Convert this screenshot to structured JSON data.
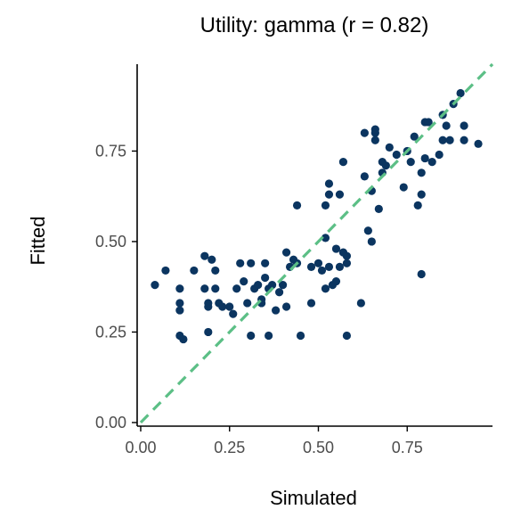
{
  "chart_data": {
    "type": "scatter",
    "title": "Utility: gamma (r = 0.82)",
    "xlabel": "Simulated",
    "ylabel": "Fitted",
    "xlim": [
      -0.01,
      0.99
    ],
    "ylim": [
      -0.01,
      0.99
    ],
    "x_ticks": [
      0,
      0.25,
      0.5,
      0.75
    ],
    "x_tick_labels": [
      "0.00",
      "0.25",
      "0.50",
      "0.75"
    ],
    "y_ticks": [
      0,
      0.25,
      0.5,
      0.75
    ],
    "y_tick_labels": [
      "0.00",
      "0.25",
      "0.50",
      "0.75"
    ],
    "grid": false,
    "point_color": "#0b3560",
    "reference_line": {
      "slope": 1,
      "intercept": 0,
      "style": "dashed",
      "color": "#5cbf86",
      "from": 0,
      "to": 1
    },
    "points": [
      [
        0.04,
        0.38
      ],
      [
        0.07,
        0.42
      ],
      [
        0.11,
        0.37
      ],
      [
        0.11,
        0.33
      ],
      [
        0.11,
        0.31
      ],
      [
        0.11,
        0.24
      ],
      [
        0.12,
        0.23
      ],
      [
        0.15,
        0.42
      ],
      [
        0.18,
        0.46
      ],
      [
        0.18,
        0.37
      ],
      [
        0.19,
        0.32
      ],
      [
        0.19,
        0.25
      ],
      [
        0.19,
        0.33
      ],
      [
        0.2,
        0.45
      ],
      [
        0.21,
        0.37
      ],
      [
        0.21,
        0.42
      ],
      [
        0.22,
        0.33
      ],
      [
        0.23,
        0.32
      ],
      [
        0.25,
        0.32
      ],
      [
        0.26,
        0.3
      ],
      [
        0.27,
        0.37
      ],
      [
        0.28,
        0.44
      ],
      [
        0.29,
        0.39
      ],
      [
        0.3,
        0.33
      ],
      [
        0.31,
        0.44
      ],
      [
        0.31,
        0.24
      ],
      [
        0.32,
        0.37
      ],
      [
        0.33,
        0.38
      ],
      [
        0.34,
        0.34
      ],
      [
        0.34,
        0.33
      ],
      [
        0.35,
        0.4
      ],
      [
        0.35,
        0.44
      ],
      [
        0.36,
        0.37
      ],
      [
        0.36,
        0.24
      ],
      [
        0.37,
        0.38
      ],
      [
        0.38,
        0.31
      ],
      [
        0.39,
        0.36
      ],
      [
        0.4,
        0.38
      ],
      [
        0.41,
        0.47
      ],
      [
        0.41,
        0.32
      ],
      [
        0.42,
        0.43
      ],
      [
        0.43,
        0.45
      ],
      [
        0.44,
        0.6
      ],
      [
        0.44,
        0.44
      ],
      [
        0.45,
        0.24
      ],
      [
        0.48,
        0.43
      ],
      [
        0.48,
        0.33
      ],
      [
        0.5,
        0.44
      ],
      [
        0.51,
        0.42
      ],
      [
        0.52,
        0.6
      ],
      [
        0.52,
        0.51
      ],
      [
        0.52,
        0.37
      ],
      [
        0.53,
        0.63
      ],
      [
        0.53,
        0.66
      ],
      [
        0.53,
        0.43
      ],
      [
        0.54,
        0.38
      ],
      [
        0.55,
        0.48
      ],
      [
        0.55,
        0.39
      ],
      [
        0.56,
        0.63
      ],
      [
        0.56,
        0.43
      ],
      [
        0.57,
        0.72
      ],
      [
        0.57,
        0.47
      ],
      [
        0.58,
        0.46
      ],
      [
        0.58,
        0.44
      ],
      [
        0.58,
        0.24
      ],
      [
        0.62,
        0.33
      ],
      [
        0.63,
        0.68
      ],
      [
        0.63,
        0.8
      ],
      [
        0.64,
        0.53
      ],
      [
        0.65,
        0.5
      ],
      [
        0.65,
        0.64
      ],
      [
        0.66,
        0.78
      ],
      [
        0.66,
        0.8
      ],
      [
        0.66,
        0.81
      ],
      [
        0.67,
        0.59
      ],
      [
        0.68,
        0.69
      ],
      [
        0.68,
        0.72
      ],
      [
        0.69,
        0.71
      ],
      [
        0.7,
        0.76
      ],
      [
        0.72,
        0.74
      ],
      [
        0.74,
        0.65
      ],
      [
        0.75,
        0.75
      ],
      [
        0.76,
        0.72
      ],
      [
        0.77,
        0.79
      ],
      [
        0.78,
        0.6
      ],
      [
        0.79,
        0.69
      ],
      [
        0.79,
        0.63
      ],
      [
        0.79,
        0.41
      ],
      [
        0.8,
        0.73
      ],
      [
        0.8,
        0.83
      ],
      [
        0.81,
        0.83
      ],
      [
        0.82,
        0.72
      ],
      [
        0.84,
        0.74
      ],
      [
        0.85,
        0.78
      ],
      [
        0.85,
        0.85
      ],
      [
        0.86,
        0.82
      ],
      [
        0.87,
        0.78
      ],
      [
        0.88,
        0.88
      ],
      [
        0.9,
        0.91
      ],
      [
        0.91,
        0.82
      ],
      [
        0.91,
        0.78
      ],
      [
        0.95,
        0.77
      ]
    ]
  }
}
